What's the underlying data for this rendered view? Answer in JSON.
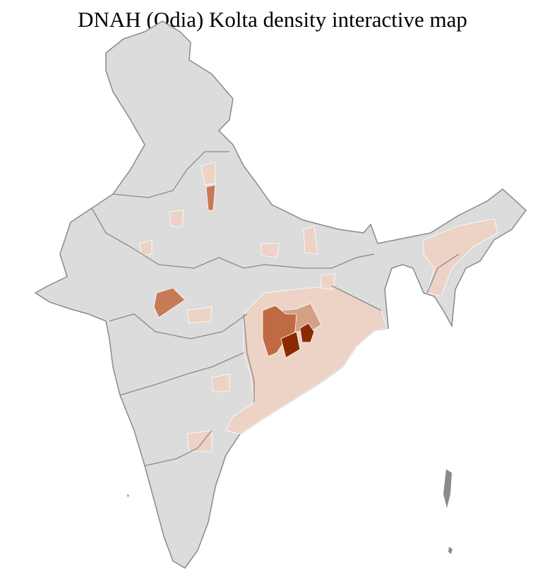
{
  "title": "DNAH (Odia) Kolta density interactive map",
  "colors": {
    "no_data": "#dcdcdc",
    "low": "#ecd3c6",
    "medium": "#d3a086",
    "high": "#c06a43",
    "highest": "#8b2a00",
    "state_border": "#8a8a8a",
    "district_border": "#ffffff"
  }
}
